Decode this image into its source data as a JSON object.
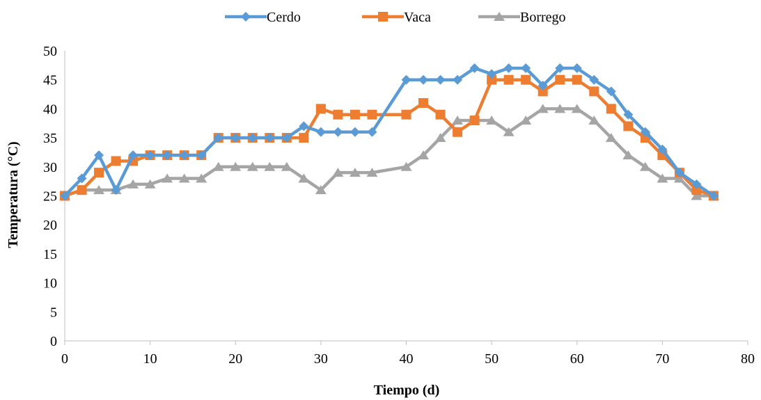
{
  "chart_data": {
    "type": "line",
    "title": "",
    "xlabel": "Tiempo (d)",
    "ylabel": "Temperatura (°C)",
    "xlim": [
      0,
      80
    ],
    "ylim": [
      0,
      50
    ],
    "xticks": [
      0,
      10,
      20,
      30,
      40,
      50,
      60,
      70,
      80
    ],
    "yticks": [
      0,
      5,
      10,
      15,
      20,
      25,
      30,
      35,
      40,
      45,
      50
    ],
    "grid": false,
    "legend_position": "top",
    "series": [
      {
        "name": "Cerdo",
        "color": "#5B9BD5",
        "marker": "diamond",
        "x": [
          0,
          2,
          4,
          6,
          8,
          10,
          12,
          14,
          16,
          18,
          20,
          22,
          24,
          26,
          28,
          30,
          32,
          34,
          36,
          40,
          42,
          44,
          46,
          48,
          50,
          52,
          54,
          56,
          58,
          60,
          62,
          64,
          66,
          68,
          70,
          72,
          74,
          76
        ],
        "y": [
          25,
          28,
          32,
          26,
          32,
          32,
          32,
          32,
          32,
          35,
          35,
          35,
          35,
          35,
          37,
          36,
          36,
          36,
          36,
          45,
          45,
          45,
          45,
          47,
          46,
          47,
          47,
          44,
          47,
          47,
          45,
          43,
          39,
          36,
          33,
          29,
          27,
          25
        ]
      },
      {
        "name": "Vaca",
        "color": "#ED7D31",
        "marker": "square",
        "x": [
          0,
          2,
          4,
          6,
          8,
          10,
          12,
          14,
          16,
          18,
          20,
          22,
          24,
          26,
          28,
          30,
          32,
          34,
          36,
          40,
          42,
          44,
          46,
          48,
          50,
          52,
          54,
          56,
          58,
          60,
          62,
          64,
          66,
          68,
          70,
          72,
          74,
          76
        ],
        "y": [
          25,
          26,
          29,
          31,
          31,
          32,
          32,
          32,
          32,
          35,
          35,
          35,
          35,
          35,
          35,
          40,
          39,
          39,
          39,
          39,
          41,
          39,
          36,
          38,
          45,
          45,
          45,
          43,
          45,
          45,
          43,
          40,
          37,
          35,
          32,
          29,
          26,
          25
        ]
      },
      {
        "name": "Borrego",
        "color": "#A5A5A5",
        "marker": "triangle",
        "x": [
          0,
          2,
          4,
          6,
          8,
          10,
          12,
          14,
          16,
          18,
          20,
          22,
          24,
          26,
          28,
          30,
          32,
          34,
          36,
          40,
          42,
          44,
          46,
          48,
          50,
          52,
          54,
          56,
          58,
          60,
          62,
          64,
          66,
          68,
          70,
          72,
          74,
          76
        ],
        "y": [
          25,
          26,
          26,
          26,
          27,
          27,
          28,
          28,
          28,
          30,
          30,
          30,
          30,
          30,
          28,
          26,
          29,
          29,
          29,
          30,
          32,
          35,
          38,
          38,
          38,
          36,
          38,
          40,
          40,
          40,
          38,
          35,
          32,
          30,
          28,
          28,
          25,
          25
        ]
      }
    ]
  }
}
